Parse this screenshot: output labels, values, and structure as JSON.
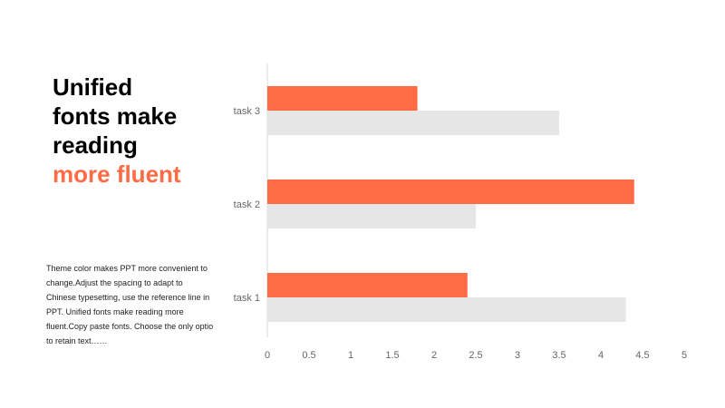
{
  "headline": {
    "line1": "Unified",
    "line2": "fonts make",
    "line3": "reading",
    "accent": "more fluent"
  },
  "body_text": "Theme  color makes PPT more convenient to change.Adjust the spacing to adapt to Chinese typesetting, use the reference line in PPT. Unified fonts make reading more fluent.Copy paste fonts. Choose the only optio to retain text……",
  "colors": {
    "accent": "#ff6b45",
    "secondary_bar": "#e6e6e6",
    "axis_text": "#666666",
    "axis_line": "#d9d9d9"
  },
  "chart_data": {
    "type": "bar",
    "orientation": "horizontal",
    "categories": [
      "task 1",
      "task 2",
      "task 3"
    ],
    "series": [
      {
        "values": [
          2.4,
          4.4,
          1.8
        ],
        "color": "#ff6b45"
      },
      {
        "values": [
          4.3,
          2.5,
          3.5
        ],
        "color": "#e6e6e6"
      }
    ],
    "xlim": [
      0,
      5
    ],
    "xticks": [
      "0",
      "0.5",
      "1",
      "1.5",
      "2",
      "2.5",
      "3",
      "3.5",
      "4",
      "4.5",
      "5"
    ],
    "grid": false,
    "legend": "none"
  }
}
